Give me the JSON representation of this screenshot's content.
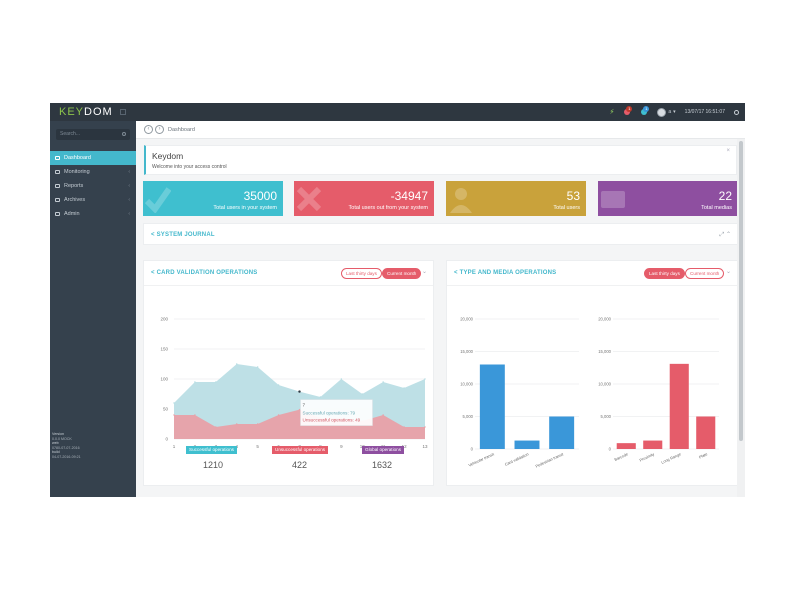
{
  "brand": {
    "part1": "KEY",
    "part2": "DOM"
  },
  "topbar": {
    "alerts_count": "1",
    "messages_count": "1",
    "user_label": "a",
    "datetime": "13/07/17 16:51:07"
  },
  "sidebar": {
    "search_placeholder": "Search...",
    "items": [
      {
        "label": "Dashboard",
        "icon": "home-icon",
        "active": true
      },
      {
        "label": "Monitoring",
        "icon": "monitor-icon"
      },
      {
        "label": "Reports",
        "icon": "reports-icon"
      },
      {
        "label": "Archives",
        "icon": "archive-icon"
      },
      {
        "label": "Admin",
        "icon": "admin-icon"
      }
    ],
    "meta": {
      "version_label": "Version",
      "version_value": "0.0.0 MOCK",
      "web_label": "web",
      "web_value": "0780-07-07-2016",
      "build_label": "build",
      "build_value": "04-07-2016-09:21"
    }
  },
  "breadcrumb": {
    "current": "Dashboard"
  },
  "welcome": {
    "title": "Keydom",
    "subtitle": "Welcome into your access control"
  },
  "tiles": [
    {
      "value": "35000",
      "label": "Total users in your system",
      "color": "#3fbfcf"
    },
    {
      "value": "-34947",
      "label": "Total users out from your system",
      "color": "#e55c6a"
    },
    {
      "value": "53",
      "label": "Total users",
      "color": "#c9a23b"
    },
    {
      "value": "22",
      "label": "Total medias",
      "color": "#8e4fa0"
    }
  ],
  "journal": {
    "title": "SYSTEM JOURNAL"
  },
  "card_panel": {
    "title": "CARD VALIDATION OPERATIONS",
    "filter_options": [
      "Last thirty days",
      "Current month"
    ],
    "selected_filter": "Current month",
    "tooltip": {
      "day": "7",
      "success": "Successful operations: 79",
      "fail": "Unsuccessful operations: 49"
    },
    "legend": [
      {
        "label": "Successful operations",
        "total": "1210",
        "color": "#3fbfcf"
      },
      {
        "label": "Unsuccessful operations",
        "total": "422",
        "color": "#e55c6a"
      },
      {
        "label": "Global operations",
        "total": "1632",
        "color": "#8e4fa0"
      }
    ]
  },
  "type_panel": {
    "title": "TYPE AND MEDIA OPERATIONS",
    "filter_options": [
      "Last thirty days",
      "Current month"
    ],
    "selected_filter": "Last thirty days"
  },
  "chart_data": [
    {
      "type": "area",
      "title": "CARD VALIDATION OPERATIONS",
      "x": [
        1,
        2,
        3,
        4,
        5,
        6,
        7,
        8,
        9,
        10,
        11,
        12,
        13
      ],
      "ylim": [
        0,
        200
      ],
      "yticks": [
        0,
        50,
        100,
        150,
        200
      ],
      "grid": true,
      "series": [
        {
          "name": "Successful operations",
          "color": "#b7dde3",
          "values": [
            60,
            95,
            95,
            125,
            120,
            90,
            79,
            70,
            100,
            75,
            95,
            85,
            100
          ]
        },
        {
          "name": "Unsuccessful operations",
          "color": "#e8a0a8",
          "values": [
            40,
            40,
            20,
            25,
            25,
            40,
            49,
            35,
            35,
            30,
            40,
            20,
            20
          ]
        }
      ]
    },
    {
      "type": "bar",
      "categories": [
        "Vehicular transit",
        "Card validation",
        "Pedestrian transit"
      ],
      "values": [
        13000,
        1300,
        5000
      ],
      "ylim": [
        0,
        20000
      ],
      "yticks": [
        "0",
        "5,000",
        "10,000",
        "15,000",
        "20,000"
      ],
      "color": "#3a97d9"
    },
    {
      "type": "bar",
      "categories": [
        "Barcode",
        "Proximity",
        "Long Range",
        "Plate"
      ],
      "values": [
        900,
        1300,
        13100,
        5000
      ],
      "ylim": [
        0,
        20000
      ],
      "yticks": [
        "0",
        "5,000",
        "10,000",
        "15,000",
        "20,000"
      ],
      "color": "#e55c6a"
    }
  ]
}
